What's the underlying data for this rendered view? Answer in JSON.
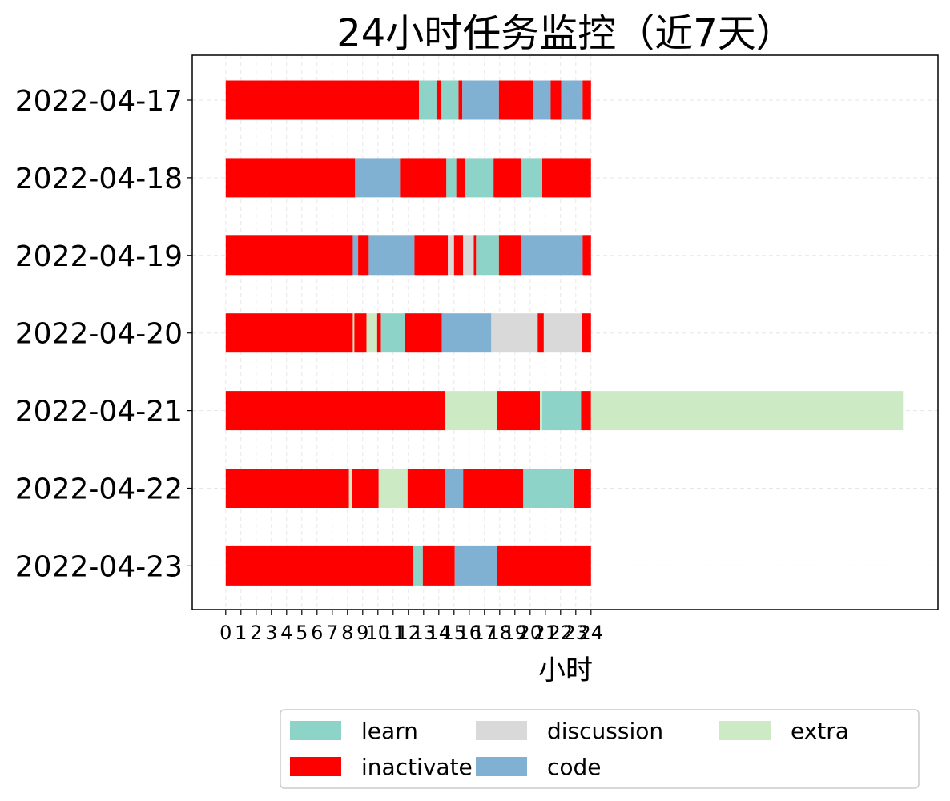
{
  "chart_data": {
    "type": "bar",
    "orientation": "horizontal-stacked",
    "title": "24小时任务监控（近7天）",
    "xlabel": "小时",
    "ylabel": "",
    "xlim": [
      -2.2,
      46.8
    ],
    "xticks": [
      0,
      1,
      2,
      3,
      4,
      5,
      6,
      7,
      8,
      9,
      10,
      11,
      12,
      13,
      14,
      15,
      16,
      17,
      18,
      19,
      20,
      21,
      22,
      23,
      24
    ],
    "grid": true,
    "legend_position": "bottom-right, outside",
    "colors": {
      "learn": "#8dd3c7",
      "code": "#80b1d3",
      "inactivate": "#ff0000",
      "extra": "#ccebc5",
      "discussion": "#d9d9d9"
    },
    "legend": [
      {
        "key": "learn",
        "label": "learn"
      },
      {
        "key": "inactivate",
        "label": "inactivate"
      },
      {
        "key": "discussion",
        "label": "discussion"
      },
      {
        "key": "code",
        "label": "code"
      },
      {
        "key": "extra",
        "label": "extra"
      }
    ],
    "days": [
      {
        "date": "2022-04-17",
        "segments": [
          {
            "start": 0,
            "end": 12.7,
            "category": "inactivate"
          },
          {
            "start": 12.7,
            "end": 13.85,
            "category": "learn"
          },
          {
            "start": 13.85,
            "end": 14.15,
            "category": "inactivate"
          },
          {
            "start": 14.15,
            "end": 15.3,
            "category": "learn"
          },
          {
            "start": 15.3,
            "end": 15.55,
            "category": "inactivate"
          },
          {
            "start": 15.55,
            "end": 17.95,
            "category": "code"
          },
          {
            "start": 17.95,
            "end": 20.2,
            "category": "inactivate"
          },
          {
            "start": 20.2,
            "end": 21.35,
            "category": "code"
          },
          {
            "start": 21.35,
            "end": 22.05,
            "category": "inactivate"
          },
          {
            "start": 22.05,
            "end": 23.45,
            "category": "code"
          },
          {
            "start": 23.45,
            "end": 24,
            "category": "inactivate"
          }
        ]
      },
      {
        "date": "2022-04-18",
        "segments": [
          {
            "start": 0,
            "end": 8.5,
            "category": "inactivate"
          },
          {
            "start": 8.5,
            "end": 11.45,
            "category": "code"
          },
          {
            "start": 11.45,
            "end": 14.5,
            "category": "inactivate"
          },
          {
            "start": 14.5,
            "end": 15.15,
            "category": "learn"
          },
          {
            "start": 15.15,
            "end": 15.7,
            "category": "inactivate"
          },
          {
            "start": 15.7,
            "end": 17.6,
            "category": "learn"
          },
          {
            "start": 17.6,
            "end": 19.4,
            "category": "inactivate"
          },
          {
            "start": 19.4,
            "end": 20.8,
            "category": "learn"
          },
          {
            "start": 20.8,
            "end": 24,
            "category": "inactivate"
          }
        ]
      },
      {
        "date": "2022-04-19",
        "segments": [
          {
            "start": 0,
            "end": 8.35,
            "category": "inactivate"
          },
          {
            "start": 8.35,
            "end": 8.7,
            "category": "code"
          },
          {
            "start": 8.7,
            "end": 9.4,
            "category": "inactivate"
          },
          {
            "start": 9.4,
            "end": 12.4,
            "category": "code"
          },
          {
            "start": 12.4,
            "end": 14.6,
            "category": "inactivate"
          },
          {
            "start": 14.6,
            "end": 15.0,
            "category": "discussion"
          },
          {
            "start": 15.0,
            "end": 15.6,
            "category": "inactivate"
          },
          {
            "start": 15.6,
            "end": 16.3,
            "category": "discussion"
          },
          {
            "start": 16.3,
            "end": 16.45,
            "category": "inactivate"
          },
          {
            "start": 16.45,
            "end": 17.95,
            "category": "learn"
          },
          {
            "start": 17.95,
            "end": 19.4,
            "category": "inactivate"
          },
          {
            "start": 19.4,
            "end": 23.45,
            "category": "code"
          },
          {
            "start": 23.45,
            "end": 24,
            "category": "inactivate"
          }
        ]
      },
      {
        "date": "2022-04-20",
        "segments": [
          {
            "start": 0,
            "end": 8.35,
            "category": "inactivate"
          },
          {
            "start": 8.35,
            "end": 8.45,
            "category": "extra"
          },
          {
            "start": 8.45,
            "end": 9.25,
            "category": "inactivate"
          },
          {
            "start": 9.25,
            "end": 9.95,
            "category": "extra"
          },
          {
            "start": 9.95,
            "end": 10.2,
            "category": "inactivate"
          },
          {
            "start": 10.2,
            "end": 11.8,
            "category": "learn"
          },
          {
            "start": 11.8,
            "end": 14.2,
            "category": "inactivate"
          },
          {
            "start": 14.2,
            "end": 17.45,
            "category": "code"
          },
          {
            "start": 17.45,
            "end": 20.5,
            "category": "discussion"
          },
          {
            "start": 20.5,
            "end": 20.9,
            "category": "inactivate"
          },
          {
            "start": 20.9,
            "end": 23.4,
            "category": "discussion"
          },
          {
            "start": 23.4,
            "end": 24,
            "category": "inactivate"
          }
        ]
      },
      {
        "date": "2022-04-21",
        "segments": [
          {
            "start": 0,
            "end": 14.4,
            "category": "inactivate"
          },
          {
            "start": 14.4,
            "end": 17.8,
            "category": "extra"
          },
          {
            "start": 17.8,
            "end": 20.65,
            "category": "inactivate"
          },
          {
            "start": 20.65,
            "end": 20.8,
            "category": "extra"
          },
          {
            "start": 20.8,
            "end": 23.35,
            "category": "learn"
          },
          {
            "start": 23.35,
            "end": 24,
            "category": "inactivate"
          },
          {
            "start": 24,
            "end": 44.5,
            "category": "extra"
          }
        ]
      },
      {
        "date": "2022-04-22",
        "segments": [
          {
            "start": 0,
            "end": 8.1,
            "category": "inactivate"
          },
          {
            "start": 8.1,
            "end": 8.3,
            "category": "extra"
          },
          {
            "start": 8.3,
            "end": 10.05,
            "category": "inactivate"
          },
          {
            "start": 10.05,
            "end": 11.95,
            "category": "extra"
          },
          {
            "start": 11.95,
            "end": 14.4,
            "category": "inactivate"
          },
          {
            "start": 14.4,
            "end": 15.6,
            "category": "code"
          },
          {
            "start": 15.6,
            "end": 19.55,
            "category": "inactivate"
          },
          {
            "start": 19.55,
            "end": 22.9,
            "category": "learn"
          },
          {
            "start": 22.9,
            "end": 24,
            "category": "inactivate"
          }
        ]
      },
      {
        "date": "2022-04-23",
        "segments": [
          {
            "start": 0,
            "end": 12.3,
            "category": "inactivate"
          },
          {
            "start": 12.3,
            "end": 12.95,
            "category": "learn"
          },
          {
            "start": 12.95,
            "end": 15.05,
            "category": "inactivate"
          },
          {
            "start": 15.05,
            "end": 17.85,
            "category": "code"
          },
          {
            "start": 17.85,
            "end": 24,
            "category": "inactivate"
          }
        ]
      }
    ]
  }
}
